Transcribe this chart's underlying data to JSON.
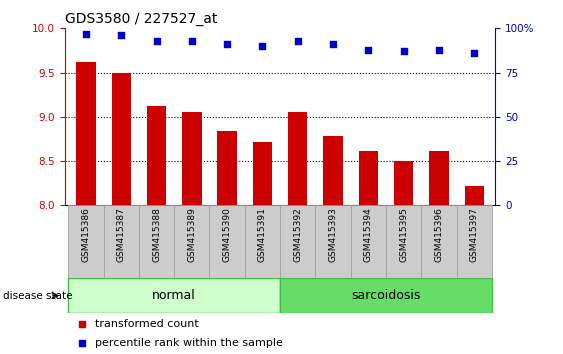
{
  "title": "GDS3580 / 227527_at",
  "samples": [
    "GSM415386",
    "GSM415387",
    "GSM415388",
    "GSM415389",
    "GSM415390",
    "GSM415391",
    "GSM415392",
    "GSM415393",
    "GSM415394",
    "GSM415395",
    "GSM415396",
    "GSM415397"
  ],
  "transformed_count": [
    9.62,
    9.5,
    9.12,
    9.06,
    8.84,
    8.71,
    9.05,
    8.78,
    8.61,
    8.5,
    8.61,
    8.22
  ],
  "percentile_rank": [
    97,
    96,
    93,
    93,
    91,
    90,
    93,
    91,
    88,
    87,
    88,
    86
  ],
  "bar_color": "#cc0000",
  "dot_color": "#0000cc",
  "ylim_left": [
    8.0,
    10.0
  ],
  "ylim_right": [
    0,
    100
  ],
  "yticks_left": [
    8.0,
    8.5,
    9.0,
    9.5,
    10.0
  ],
  "yticks_right": [
    0,
    25,
    50,
    75,
    100
  ],
  "ytick_labels_right": [
    "0",
    "25",
    "50",
    "75",
    "100%"
  ],
  "grid_values": [
    8.5,
    9.0,
    9.5
  ],
  "normal_color_light": "#ccffcc",
  "normal_color_border": "#44bb44",
  "sarcoidosis_color_light": "#66dd66",
  "sarcoidosis_color_border": "#44bb44",
  "label_bg_color": "#cccccc",
  "label_border_color": "#999999",
  "bg_color": "#ffffff",
  "bar_width": 0.55,
  "title_fontsize": 10,
  "tick_fontsize": 7.5,
  "legend_fontsize": 8,
  "label_fontsize": 6.5,
  "group_fontsize": 9
}
